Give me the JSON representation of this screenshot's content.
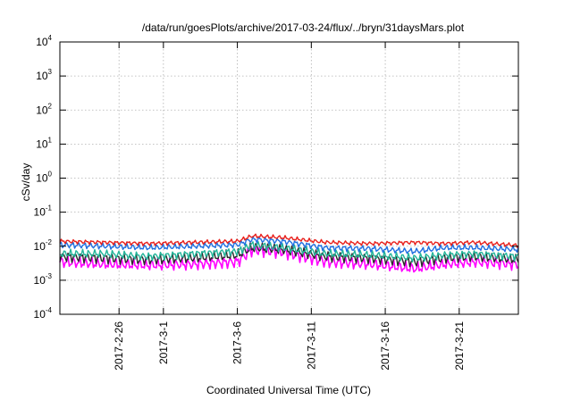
{
  "chart_data": {
    "type": "line",
    "title": "/data/run/goesPlots/archive/2017-03-24/flux/../bryn/31daysMars.plot",
    "xlabel": "Coordinated Universal Time (UTC)",
    "ylabel": "cSv/day",
    "yscale": "log",
    "ylim": [
      0.0001,
      10000
    ],
    "y_ticks": [
      {
        "base": "10",
        "exp": "-4",
        "value": 0.0001
      },
      {
        "base": "10",
        "exp": "-3",
        "value": 0.001
      },
      {
        "base": "10",
        "exp": "-2",
        "value": 0.01
      },
      {
        "base": "10",
        "exp": "-1",
        "value": 0.1
      },
      {
        "base": "10",
        "exp": "0",
        "value": 1
      },
      {
        "base": "10",
        "exp": "1",
        "value": 10
      },
      {
        "base": "10",
        "exp": "2",
        "value": 100
      },
      {
        "base": "10",
        "exp": "3",
        "value": 1000
      },
      {
        "base": "10",
        "exp": "4",
        "value": 10000
      }
    ],
    "xlim": [
      "2017-02-22",
      "2017-03-25"
    ],
    "x_ticks": [
      "2017-2-26",
      "2017-3-1",
      "2017-3-6",
      "2017-3-11",
      "2017-3-16",
      "2017-3-21"
    ],
    "x_tick_dates": [
      "2017-02-26",
      "2017-03-01",
      "2017-03-06",
      "2017-03-11",
      "2017-03-16",
      "2017-03-21"
    ],
    "grid": true,
    "legend": "none",
    "x_dates": [
      "2017-02-22",
      "2017-02-25",
      "2017-02-28",
      "2017-03-03",
      "2017-03-06",
      "2017-03-07",
      "2017-03-09",
      "2017-03-12",
      "2017-03-15",
      "2017-03-18",
      "2017-03-20",
      "2017-03-22",
      "2017-03-25"
    ],
    "series": [
      {
        "color": "#e8201c",
        "values": [
          0.014,
          0.013,
          0.012,
          0.013,
          0.014,
          0.02,
          0.018,
          0.013,
          0.012,
          0.013,
          0.012,
          0.013,
          0.0105
        ]
      },
      {
        "color": "#1f6fe0",
        "values": [
          0.011,
          0.01,
          0.009,
          0.01,
          0.011,
          0.016,
          0.014,
          0.009,
          0.0085,
          0.007,
          0.009,
          0.009,
          0.008
        ]
      },
      {
        "color": "#22b59a",
        "values": [
          0.006,
          0.006,
          0.005,
          0.006,
          0.007,
          0.011,
          0.009,
          0.006,
          0.0055,
          0.0045,
          0.0055,
          0.006,
          0.005
        ]
      },
      {
        "color": "#2a2a2a",
        "values": [
          0.005,
          0.0045,
          0.004,
          0.0045,
          0.0055,
          0.009,
          0.008,
          0.005,
          0.0045,
          0.0035,
          0.0045,
          0.005,
          0.004
        ]
      },
      {
        "color": "#ff00ff",
        "values": [
          0.0035,
          0.003,
          0.0028,
          0.003,
          0.0035,
          0.008,
          0.007,
          0.0035,
          0.003,
          0.0022,
          0.003,
          0.0035,
          0.003
        ]
      }
    ]
  }
}
